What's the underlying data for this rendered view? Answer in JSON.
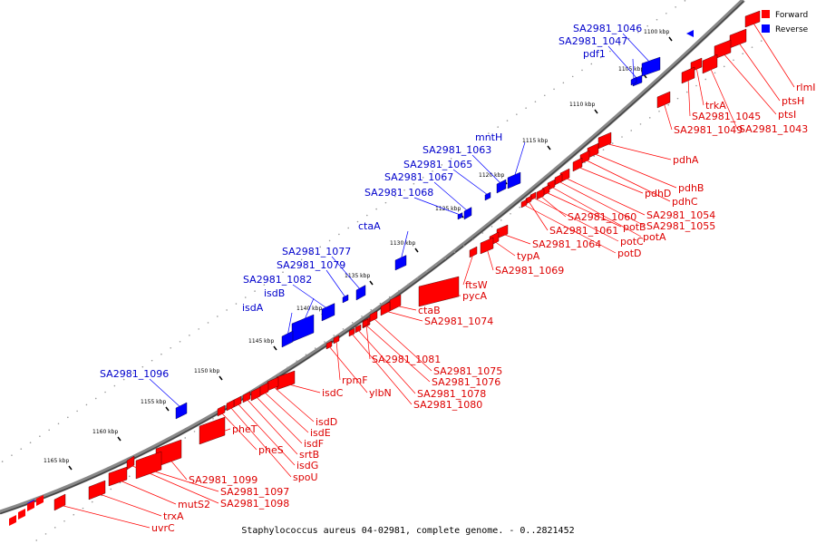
{
  "title": "Staphylococcus aureus 04-02981, complete genome. - 0..2821452",
  "legend": [
    {
      "label": "Forward",
      "color": "#ff0000"
    },
    {
      "label": "Reverse",
      "color": "#0000ff"
    }
  ],
  "colors": {
    "forward": "#ff0000",
    "reverse": "#0000ff",
    "forward_label": "#dd0000",
    "reverse_label": "#0000cc",
    "backbone": "#777777"
  },
  "ticks": [
    "1100 kbp",
    "1105 kbp",
    "1110 kbp",
    "1115 kbp",
    "1120 kbp",
    "1125 kbp",
    "1130 kbp",
    "1135 kbp",
    "1140 kbp",
    "1145 kbp",
    "1150 kbp",
    "1155 kbp",
    "1160 kbp",
    "1165 kbp"
  ],
  "reverse_genes": [
    "SA2981_1046",
    "SA2981_1047",
    "pdf1",
    "mntH",
    "SA2981_1063",
    "SA2981_1065",
    "SA2981_1067",
    "SA2981_1068",
    "ctaA",
    "SA2981_1077",
    "SA2981_1079",
    "SA2981_1082",
    "isdB",
    "isdA",
    "SA2981_1096"
  ],
  "forward_genes": [
    "rlmI",
    "ptsH",
    "ptsI",
    "trkA",
    "SA2981_1045",
    "SA2981_1049",
    "SA2981_1043",
    "pdhA",
    "pdhB",
    "pdhC",
    "pdhD",
    "SA2981_1054",
    "SA2981_1055",
    "potA",
    "potB",
    "SA2981_1060",
    "potC",
    "SA2981_1061",
    "potD",
    "SA2981_1064",
    "typA",
    "SA2981_1069",
    "ftsW",
    "pycA",
    "ctaB",
    "SA2981_1074",
    "SA2981_1081",
    "SA2981_1075",
    "SA2981_1076",
    "SA2981_1078",
    "SA2981_1080",
    "rpmF",
    "ylbN",
    "isdC",
    "isdD",
    "isdE",
    "isdF",
    "srtB",
    "isdG",
    "spoU",
    "pheS",
    "pheT",
    "SA2981_1099",
    "SA2981_1097",
    "SA2981_1098",
    "mutS2",
    "trxA",
    "uvrC"
  ]
}
